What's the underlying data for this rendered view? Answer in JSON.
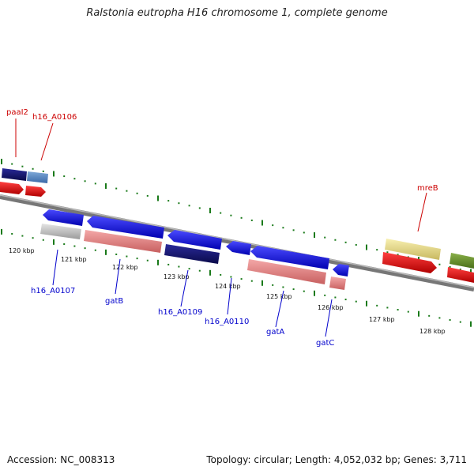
{
  "title": "Ralstonia eutropha H16 chromosome 1, complete genome",
  "footer": {
    "accession": "Accession: NC_008313",
    "summary": "Topology: circular; Length: 4,052,032 bp; Genes: 3,711"
  },
  "colors": {
    "forward_label": "#cc0000",
    "reverse_label": "#0000cc",
    "tick": "#1a7a1a",
    "backbone": "#777777"
  },
  "ticks": [
    "120 kbp",
    "121 kbp",
    "122 kbp",
    "123 kbp",
    "124 kbp",
    "125 kbp",
    "126 kbp",
    "127 kbp",
    "128 kbp"
  ],
  "forward_labels": [
    "paaI2",
    "h16_A0106",
    "mreB"
  ],
  "reverse_labels": [
    "h16_A0107",
    "gatB",
    "h16_A0109",
    "h16_A0110",
    "gatA",
    "gatC"
  ]
}
